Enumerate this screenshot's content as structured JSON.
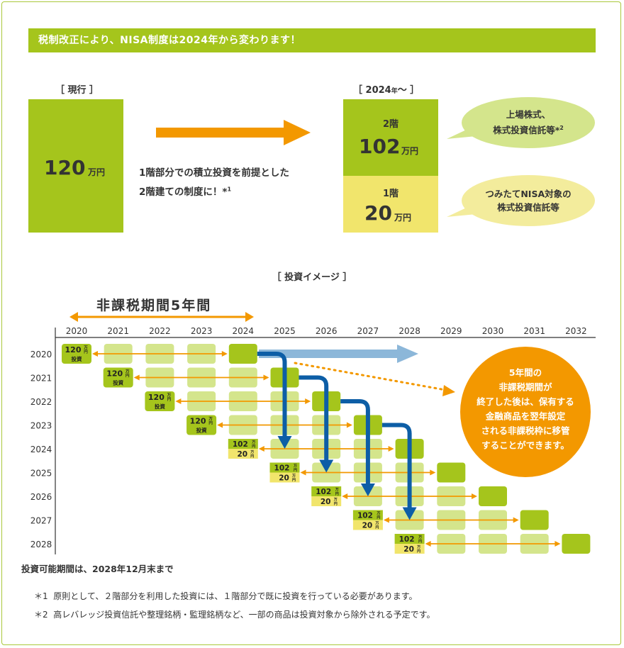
{
  "header": {
    "title": "税制改正により、NISA制度は2024年から変わります！"
  },
  "current": {
    "label": "［ 現行 ］",
    "amount": "120",
    "unit": "万円"
  },
  "new": {
    "label_prefix": "［ 2024",
    "label_small": "年",
    "label_suffix": "〜 ］",
    "floor2_label": "2階",
    "floor2_amount": "102",
    "floor2_unit": "万円",
    "floor1_label": "1階",
    "floor1_amount": "20",
    "floor1_unit": "万円"
  },
  "arrow_text": {
    "line1": "1階部分での積立投資を前提とした",
    "line2": "2階建ての制度に！*",
    "note_mark": "1"
  },
  "bubbles": {
    "upper_line1": "上場株式、",
    "upper_line2": "株式投資信託等*",
    "upper_note": "2",
    "lower_line1": "つみたてNISA対象の",
    "lower_line2": "株式投資信託等"
  },
  "image": {
    "title": "［ 投資イメージ ］",
    "period_label": "非課税期間5年間",
    "years": [
      "2020",
      "2021",
      "2022",
      "2023",
      "2024",
      "2025",
      "2026",
      "2027",
      "2028",
      "2029",
      "2030",
      "2031",
      "2032"
    ],
    "rows": [
      "2020",
      "2021",
      "2022",
      "2023",
      "2024",
      "2025",
      "2026",
      "2027",
      "2028"
    ],
    "tag120": "120",
    "tag102": "102",
    "tag20": "20",
    "unit_man": "万",
    "unit_en": "円",
    "tag_invest": "投資",
    "circle_lines": [
      "5年間の",
      "非課税期間が",
      "終了した後は、保有する",
      "金融商品を翌年設定",
      "される非課税枠に移管",
      "することができます。"
    ],
    "bottom_note": "投資可能期間は、2028年12月末まで"
  },
  "footnotes": [
    {
      "mark": "＊1",
      "text": "原則として、２階部分を利用した投資には、１階部分で既に投資を行っている必要があります。"
    },
    {
      "mark": "＊2",
      "text": "高レバレッジ投資信託や整理銘柄・監理銘柄など、一部の商品は投資対象から除外される予定です。"
    }
  ],
  "colors": {
    "green": "#a5c51c",
    "light_green": "#d4e58c",
    "yellow": "#f1e56c",
    "orange": "#f39800",
    "blue": "#0d5ea6",
    "light_blue": "#8cb7d9"
  }
}
